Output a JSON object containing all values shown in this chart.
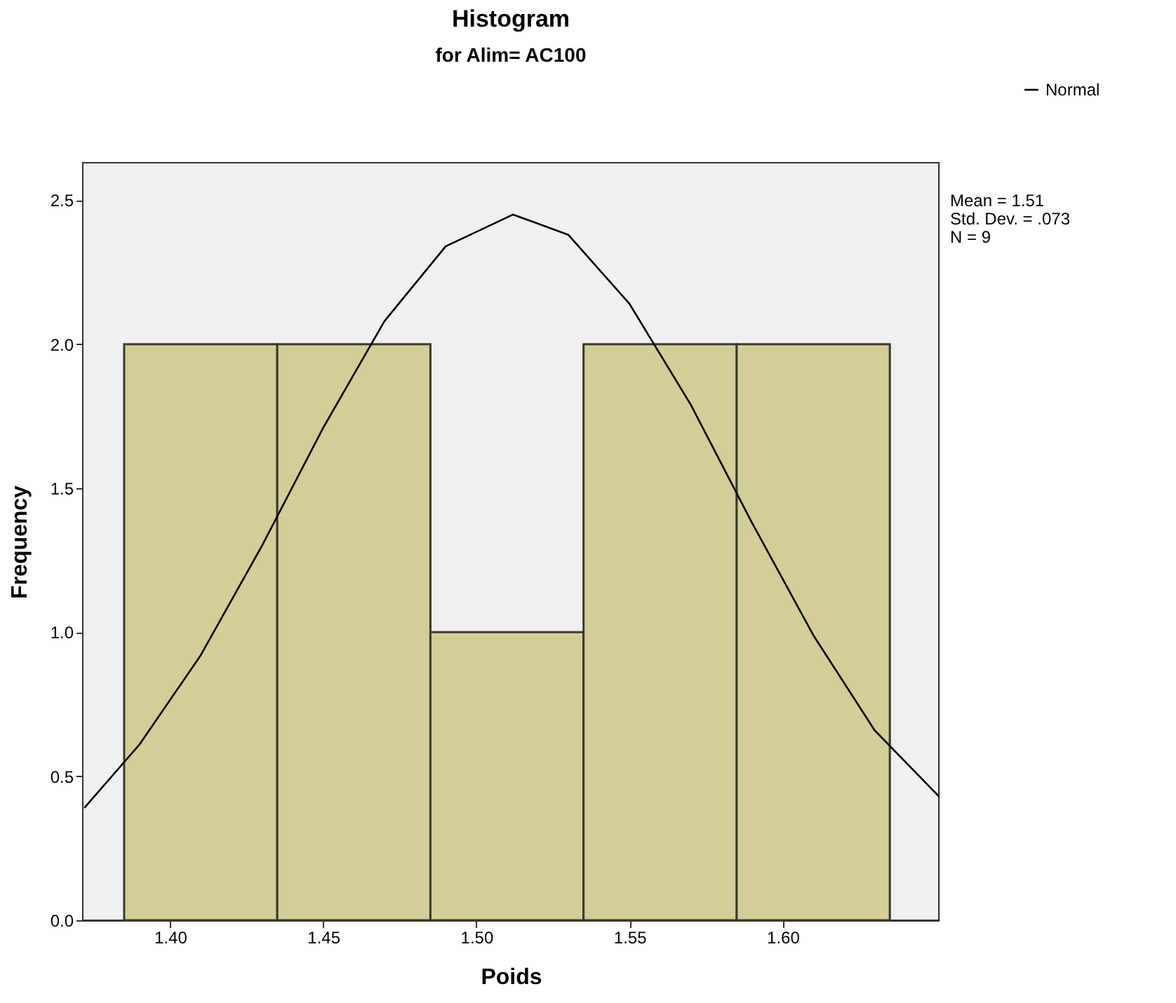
{
  "chart_data": {
    "type": "histogram",
    "title": "Histogram",
    "subtitle": "for Alim= AC100",
    "xlabel": "Poids",
    "ylabel": "Frequency",
    "bins": [
      1.385,
      1.435,
      1.485,
      1.535,
      1.585,
      1.635
    ],
    "values": [
      2,
      2,
      1,
      2,
      2
    ],
    "color": "#d3ce97",
    "series": [
      {
        "name": "Normal",
        "type": "line",
        "color": "#000000",
        "line_style": "solid",
        "x": [
          1.372,
          1.39,
          1.41,
          1.43,
          1.45,
          1.47,
          1.49,
          1.512,
          1.53,
          1.55,
          1.57,
          1.59,
          1.61,
          1.63,
          1.651
        ],
        "values": [
          0.39,
          0.61,
          0.92,
          1.3,
          1.71,
          2.08,
          2.34,
          2.45,
          2.38,
          2.14,
          1.79,
          1.38,
          0.99,
          0.66,
          0.43
        ]
      }
    ],
    "xlim": [
      1.3715,
      1.651
    ],
    "xticks": [
      {
        "value": 1.4,
        "label": "1.40"
      },
      {
        "value": 1.45,
        "label": "1.45"
      },
      {
        "value": 1.5,
        "label": "1.50"
      },
      {
        "value": 1.55,
        "label": "1.55"
      },
      {
        "value": 1.6,
        "label": "1.60"
      }
    ],
    "ylim": [
      0,
      2.63
    ],
    "yticks": [
      {
        "value": 0,
        "label": "0.0"
      },
      {
        "value": 0.5,
        "label": "0.5"
      },
      {
        "value": 1,
        "label": "1.0"
      },
      {
        "value": 1.5,
        "label": "1.5"
      },
      {
        "value": 2,
        "label": "2.0"
      },
      {
        "value": 2.5,
        "label": "2.5"
      }
    ],
    "annotations": [
      "Mean = 1.51",
      "Std. Dev. = .073",
      "N = 9"
    ],
    "legend": "top right"
  }
}
